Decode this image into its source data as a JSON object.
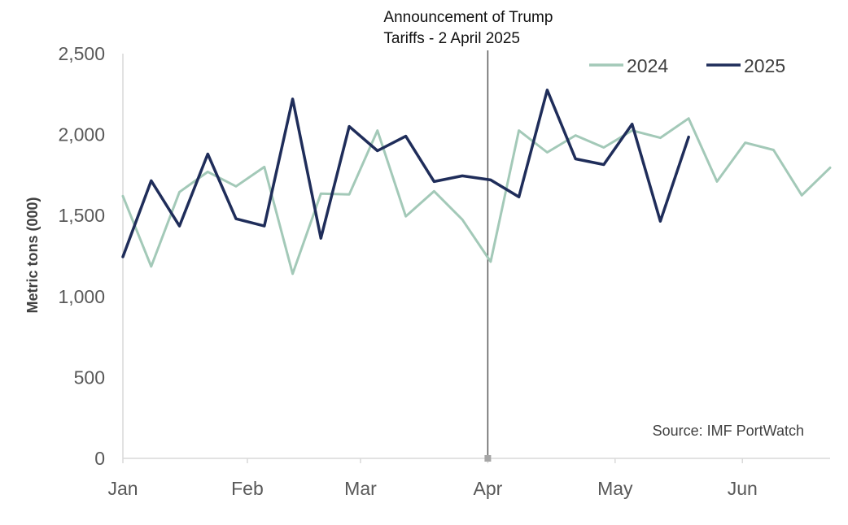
{
  "chart_data": {
    "type": "line",
    "title": "",
    "xlabel": "",
    "ylabel": "Metric tons (000)",
    "ylim": [
      0,
      2500
    ],
    "yticks": [
      0,
      500,
      1000,
      1500,
      2000,
      2500
    ],
    "ytick_labels": [
      "0",
      "500",
      "1,000",
      "1,500",
      "2,000",
      "2,500"
    ],
    "x_unit": "week of year",
    "xlim": [
      1,
      26
    ],
    "x_ticks": [
      {
        "label": "Jan",
        "x": 1
      },
      {
        "label": "Feb",
        "x": 5.4
      },
      {
        "label": "Mar",
        "x": 9.4
      },
      {
        "label": "Apr",
        "x": 13.9
      },
      {
        "label": "May",
        "x": 18.4
      },
      {
        "label": "Jun",
        "x": 22.9
      }
    ],
    "grid": false,
    "legend_position": "top-right",
    "series": [
      {
        "name": "2024",
        "color": "#a3c9b8",
        "x": [
          1,
          2,
          3,
          4,
          5,
          6,
          7,
          8,
          9,
          10,
          11,
          12,
          13,
          14,
          15,
          16,
          17,
          18,
          19,
          20,
          21,
          22,
          23,
          24,
          25,
          26
        ],
        "values": [
          1620,
          1185,
          1645,
          1770,
          1680,
          1800,
          1140,
          1635,
          1630,
          2025,
          1495,
          1650,
          1475,
          1215,
          2025,
          1890,
          1995,
          1920,
          2025,
          1980,
          2100,
          1710,
          1950,
          1905,
          1625,
          1795
        ]
      },
      {
        "name": "2025",
        "color": "#1f2d5a",
        "x": [
          1,
          2,
          3,
          4,
          5,
          6,
          7,
          8,
          9,
          10,
          11,
          12,
          13,
          14,
          15,
          16,
          17,
          18,
          19,
          20,
          21
        ],
        "values": [
          1245,
          1715,
          1435,
          1880,
          1480,
          1435,
          2220,
          1360,
          2050,
          1900,
          1990,
          1710,
          1745,
          1720,
          1615,
          2275,
          1850,
          1815,
          2065,
          1465,
          1985
        ]
      }
    ],
    "annotation": {
      "text_line1": "Announcement of Trump",
      "text_line2": "Tariffs - 2 April 2025",
      "x": 13.9
    },
    "source": "Source: IMF PortWatch"
  }
}
